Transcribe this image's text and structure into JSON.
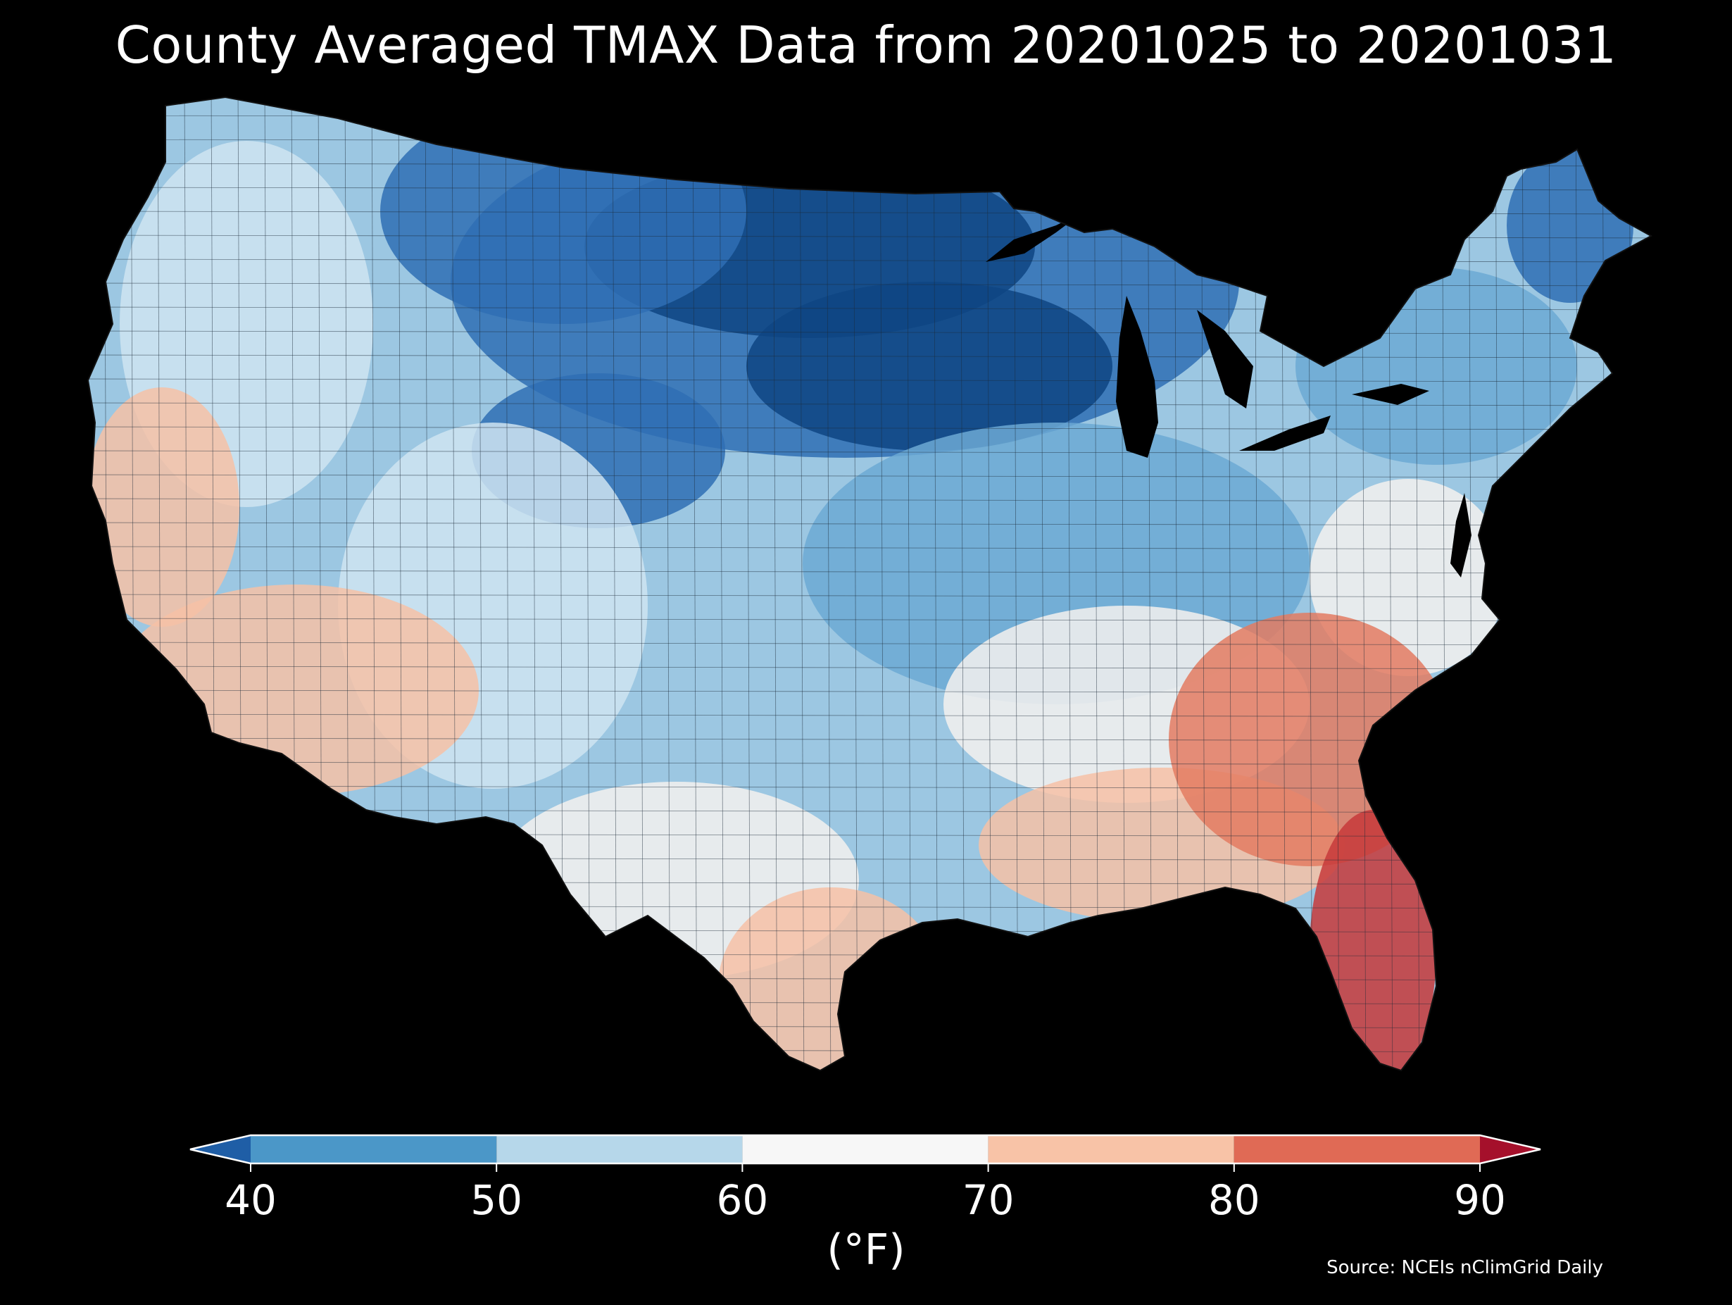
{
  "title": "County Averaged TMAX Data from 20201025 to 20201031",
  "colorbar": {
    "unit": "(°F)",
    "ticks": [
      "40",
      "50",
      "60",
      "70",
      "80",
      "90"
    ],
    "bins": [
      {
        "from": 40,
        "to": 50,
        "color": "#4b97c8"
      },
      {
        "from": 50,
        "to": 60,
        "color": "#b6d7ea"
      },
      {
        "from": 60,
        "to": 70,
        "color": "#f7f7f7"
      },
      {
        "from": 70,
        "to": 80,
        "color": "#f8c3a7"
      },
      {
        "from": 80,
        "to": 90,
        "color": "#e06a55"
      }
    ],
    "under_color": "#1f5ea6",
    "over_color": "#a5102b"
  },
  "source": "Source: NCEIs nClimGrid Daily",
  "palette": {
    "very_cold": "#0e4583",
    "cold": "#2f6fb4",
    "cool": "#6ca9d4",
    "mild": "#cfe4f1",
    "neutral": "#f4f1ef",
    "warm": "#f6c1a6",
    "hot": "#e37b62",
    "very_hot": "#c7393b",
    "background": "#000000"
  }
}
